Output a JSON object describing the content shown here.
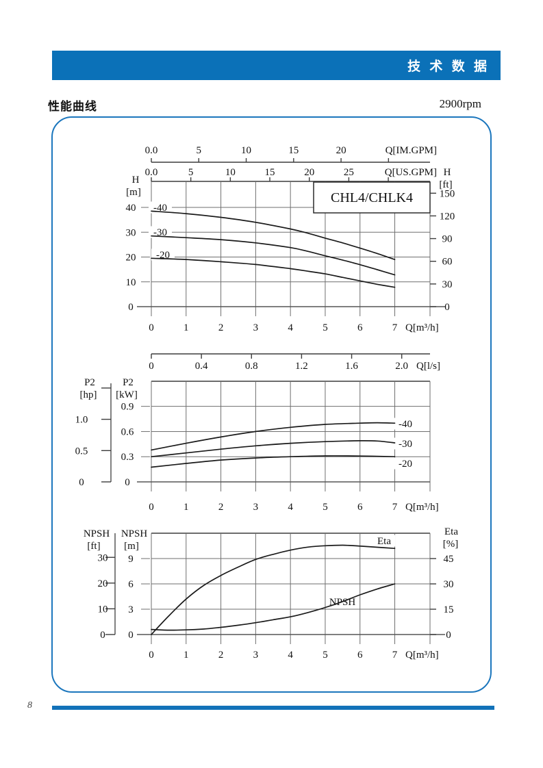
{
  "banner": {
    "text": "技 术 数 据"
  },
  "section": {
    "title": "性能曲线"
  },
  "page": {
    "rpm": "2900rpm",
    "number": "8"
  },
  "colors": {
    "banner_blue": "#0b71b8",
    "frame_blue": "#1b76bd",
    "rule_blue": "#1272b9",
    "curve_dark": "#1a1a1a",
    "grid_gray": "#6e6e6e"
  },
  "chart_data": [
    {
      "id": "head-capacity",
      "type": "line",
      "title": "CHL4/CHLK4",
      "x_axis": {
        "label": "Q[m³/h]",
        "ticks": [
          "0",
          "1",
          "2",
          "3",
          "4",
          "5",
          "6",
          "7"
        ],
        "range": [
          0,
          8
        ]
      },
      "secondary_x_axes": [
        {
          "label": "Q[IM.GPM]",
          "tick_labels": [
            "0.0",
            "5",
            "10",
            "15",
            "20"
          ],
          "tick_values": [
            0,
            5,
            10,
            15,
            20
          ],
          "extra_tick_values": [
            25
          ],
          "unit_per_m3h": 3.6661
        },
        {
          "label": "Q[US.GPM]",
          "tick_labels": [
            "0.0",
            "5",
            "10",
            "15",
            "20",
            "25"
          ],
          "tick_values": [
            0,
            5,
            10,
            15,
            20,
            25
          ],
          "extra_tick_values": [
            30
          ],
          "unit_per_m3h": 4.4029
        }
      ],
      "y_left": {
        "name": "H",
        "unit": "[m]",
        "ticks": [
          40,
          30,
          20,
          10,
          0
        ],
        "range": [
          0,
          50
        ]
      },
      "y_right": {
        "name": "H",
        "unit": "[ft]",
        "ticks": [
          150,
          120,
          90,
          60,
          30,
          0
        ]
      },
      "series": [
        {
          "name": "-40",
          "points": [
            [
              0,
              38.5
            ],
            [
              1,
              37.5
            ],
            [
              2,
              36.0
            ],
            [
              3,
              34.0
            ],
            [
              4,
              31.3
            ],
            [
              4.5,
              29.6
            ],
            [
              5,
              27.6
            ],
            [
              5.5,
              25.7
            ],
            [
              6,
              23.6
            ],
            [
              6.5,
              21.4
            ],
            [
              7,
              19.0
            ]
          ]
        },
        {
          "name": "-30",
          "points": [
            [
              0,
              28.5
            ],
            [
              1,
              27.8
            ],
            [
              2,
              27.0
            ],
            [
              3,
              25.7
            ],
            [
              4,
              23.8
            ],
            [
              4.5,
              22.3
            ],
            [
              5,
              20.5
            ],
            [
              5.5,
              18.8
            ],
            [
              6,
              16.9
            ],
            [
              6.5,
              14.9
            ],
            [
              7,
              12.8
            ]
          ]
        },
        {
          "name": "-20",
          "points": [
            [
              0,
              19.5
            ],
            [
              1,
              19.0
            ],
            [
              2,
              18.1
            ],
            [
              3,
              17.0
            ],
            [
              4,
              15.3
            ],
            [
              4.5,
              14.3
            ],
            [
              5,
              13.2
            ],
            [
              5.5,
              11.8
            ],
            [
              6,
              10.4
            ],
            [
              6.5,
              9.0
            ],
            [
              7,
              7.8
            ]
          ]
        }
      ]
    },
    {
      "id": "power",
      "type": "line",
      "x_axis": {
        "label": "Q[m³/h]",
        "ticks": [
          "0",
          "1",
          "2",
          "3",
          "4",
          "5",
          "6",
          "7"
        ],
        "range": [
          0,
          8
        ]
      },
      "secondary_x_axes": [
        {
          "label": "Q[l/s]",
          "tick_labels": [
            "0",
            "0.4",
            "0.8",
            "1.2",
            "1.6",
            "2.0"
          ],
          "tick_values": [
            0,
            0.4,
            0.8,
            1.2,
            1.6,
            2.0
          ],
          "extra_tick_values": [],
          "unit_per_m3h": 0.27778
        }
      ],
      "y_left_outer": {
        "name": "P2",
        "unit": "[hp]",
        "tick_labels": [
          "1.0",
          "0.5",
          "0"
        ],
        "tick_values": [
          1.0,
          0.5,
          0
        ],
        "extra_tick_values": [
          1.5
        ]
      },
      "y_left": {
        "name": "P2",
        "unit": "[kW]",
        "tick_labels": [
          "0.9",
          "0.6",
          "0.3",
          "0"
        ],
        "tick_values": [
          0.9,
          0.6,
          0.3,
          0
        ],
        "range": [
          0,
          1.2
        ]
      },
      "series": [
        {
          "name": "-40",
          "points": [
            [
              0,
              0.38
            ],
            [
              1,
              0.46
            ],
            [
              2,
              0.535
            ],
            [
              3,
              0.6
            ],
            [
              4,
              0.65
            ],
            [
              5,
              0.685
            ],
            [
              6,
              0.7
            ],
            [
              6.5,
              0.705
            ],
            [
              7,
              0.7
            ]
          ]
        },
        {
          "name": "-30",
          "points": [
            [
              0,
              0.3
            ],
            [
              1,
              0.345
            ],
            [
              2,
              0.39
            ],
            [
              3,
              0.43
            ],
            [
              4,
              0.46
            ],
            [
              5,
              0.48
            ],
            [
              6,
              0.49
            ],
            [
              6.5,
              0.487
            ],
            [
              7,
              0.465
            ]
          ]
        },
        {
          "name": "-20",
          "points": [
            [
              0,
              0.175
            ],
            [
              1,
              0.22
            ],
            [
              2,
              0.26
            ],
            [
              3,
              0.285
            ],
            [
              4,
              0.3
            ],
            [
              5,
              0.31
            ],
            [
              6,
              0.308
            ],
            [
              7,
              0.3
            ]
          ]
        }
      ]
    },
    {
      "id": "npsh-eta",
      "type": "line",
      "x_axis": {
        "label": "Q[m³/h]",
        "ticks": [
          "0",
          "1",
          "2",
          "3",
          "4",
          "5",
          "6",
          "7"
        ],
        "range": [
          0,
          8
        ]
      },
      "y_left_outer": {
        "name": "NPSH",
        "unit": "[ft]",
        "ticks": [
          30,
          20,
          10,
          0
        ]
      },
      "y_left": {
        "name": "NPSH",
        "unit": "[m]",
        "ticks": [
          9,
          6,
          3,
          0
        ],
        "range": [
          0,
          12
        ]
      },
      "y_right": {
        "name": "Eta",
        "unit": "[%]",
        "ticks": [
          45,
          30,
          15,
          0
        ],
        "range": [
          0,
          60
        ]
      },
      "series": [
        {
          "name": "Eta",
          "axis": "percent",
          "points": [
            [
              0,
              0
            ],
            [
              0.5,
              11
            ],
            [
              1,
              21
            ],
            [
              1.5,
              29
            ],
            [
              2,
              35
            ],
            [
              2.5,
              40
            ],
            [
              3,
              44.5
            ],
            [
              3.5,
              47.5
            ],
            [
              4,
              50
            ],
            [
              4.5,
              51.8
            ],
            [
              5,
              52.6
            ],
            [
              5.5,
              52.9
            ],
            [
              6,
              52.4
            ],
            [
              6.5,
              51.7
            ],
            [
              7,
              51
            ]
          ]
        },
        {
          "name": "NPSH",
          "axis": "m",
          "points": [
            [
              0,
              0.6
            ],
            [
              0.5,
              0.52
            ],
            [
              1,
              0.55
            ],
            [
              1.5,
              0.65
            ],
            [
              2,
              0.85
            ],
            [
              2.5,
              1.1
            ],
            [
              3,
              1.4
            ],
            [
              3.5,
              1.75
            ],
            [
              4,
              2.1
            ],
            [
              4.5,
              2.6
            ],
            [
              5,
              3.2
            ],
            [
              5.5,
              3.9
            ],
            [
              6,
              4.7
            ],
            [
              6.5,
              5.4
            ],
            [
              7,
              6.0
            ]
          ]
        }
      ]
    }
  ]
}
